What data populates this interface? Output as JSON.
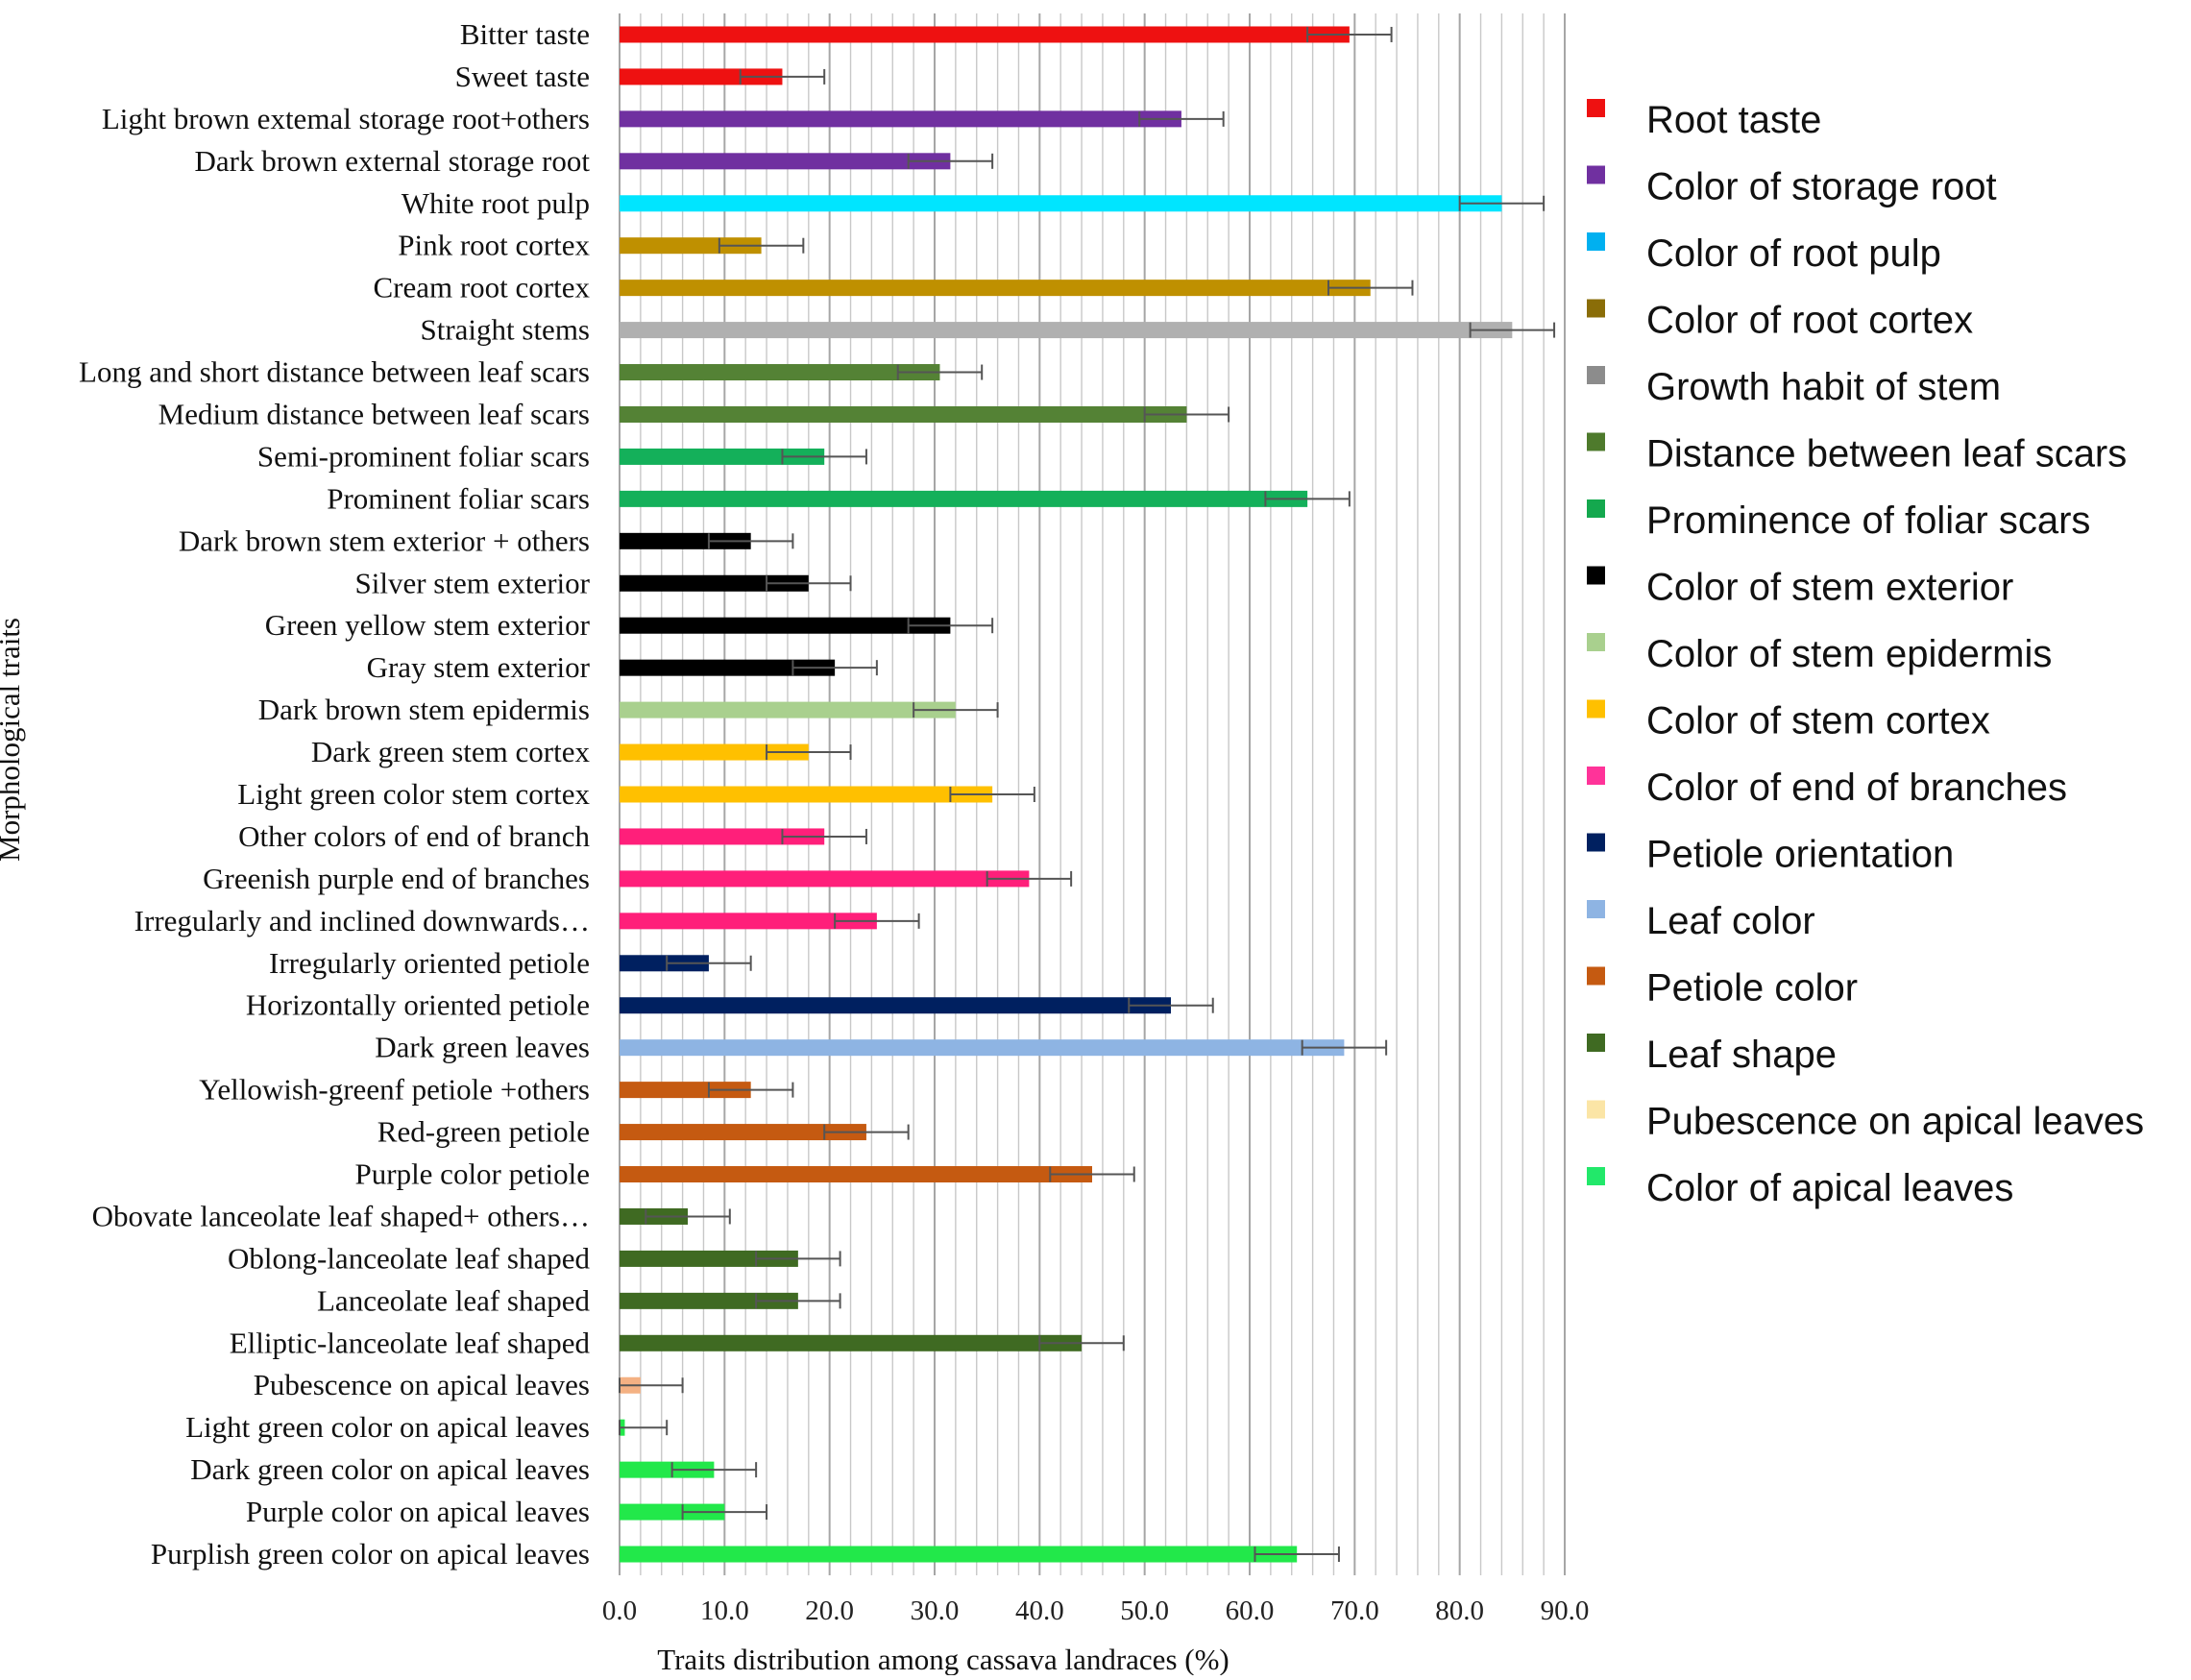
{
  "chart_data": {
    "type": "bar",
    "orientation": "horizontal",
    "xlabel": "Traits  distribution among cassava landraces (%)",
    "ylabel": "Morphological traits",
    "xlim": [
      0,
      90
    ],
    "x_ticks": [
      "0.0",
      "10.0",
      "20.0",
      "30.0",
      "40.0",
      "50.0",
      "60.0",
      "70.0",
      "80.0",
      "90.0"
    ],
    "grid": "vertical",
    "legend_position": "right",
    "legend": [
      {
        "name": "Root taste",
        "color": "#ee1111"
      },
      {
        "name": "Color of storage root",
        "color": "#7030a0"
      },
      {
        "name": "Color of root pulp",
        "color": "#00b0f0"
      },
      {
        "name": "Color of root cortex",
        "color": "#8a6d08"
      },
      {
        "name": "Growth habit of stem",
        "color": "#8c8c8c"
      },
      {
        "name": "Distance between leaf scars",
        "color": "#4e7a2c"
      },
      {
        "name": "Prominence of foliar scars",
        "color": "#14a84e"
      },
      {
        "name": "Color of stem exterior",
        "color": "#000000"
      },
      {
        "name": "Color of stem epidermis",
        "color": "#a9d08e"
      },
      {
        "name": "Color of stem cortex",
        "color": "#ffc000"
      },
      {
        "name": "Color of end of branches",
        "color": "#ff3399"
      },
      {
        "name": "Petiole orientation",
        "color": "#002060"
      },
      {
        "name": "Leaf color",
        "color": "#8eb4e3"
      },
      {
        "name": "Petiole color",
        "color": "#c55a11"
      },
      {
        "name": "Leaf shape",
        "color": "#3f6a22"
      },
      {
        "name": "Pubescence on apical leaves",
        "color": "#fbe5a6"
      },
      {
        "name": "Color of apical leaves",
        "color": "#22e86a"
      }
    ],
    "bars": [
      {
        "label": "Bitter taste",
        "value": 69.5,
        "error": 4.0,
        "color": "#ee1111"
      },
      {
        "label": "Sweet taste",
        "value": 15.5,
        "error": 4.0,
        "color": "#ee1111"
      },
      {
        "label": "Light brown extemal storage root+others",
        "value": 53.5,
        "error": 4.0,
        "color": "#7030a0"
      },
      {
        "label": "Dark brown external storage root",
        "value": 31.5,
        "error": 4.0,
        "color": "#7030a0"
      },
      {
        "label": "White  root pulp",
        "value": 84.0,
        "error": 4.0,
        "color": "#00e5ff"
      },
      {
        "label": "Pink root cortex",
        "value": 13.5,
        "error": 4.0,
        "color": "#bf9000"
      },
      {
        "label": "Cream  root cortex",
        "value": 71.5,
        "error": 4.0,
        "color": "#bf9000"
      },
      {
        "label": "Straight stems",
        "value": 85.0,
        "error": 4.0,
        "color": "#b0b0b0"
      },
      {
        "label": "Long and short distance between leaf scars",
        "value": 30.5,
        "error": 4.0,
        "color": "#548235"
      },
      {
        "label": "Medium distance between leaf scars",
        "value": 54.0,
        "error": 4.0,
        "color": "#548235"
      },
      {
        "label": "Semi-prominent foliar scars",
        "value": 19.5,
        "error": 4.0,
        "color": "#14b05a"
      },
      {
        "label": "Prominent foliar scars",
        "value": 65.5,
        "error": 4.0,
        "color": "#14b05a"
      },
      {
        "label": "Dark brown stem exterior + others",
        "value": 12.5,
        "error": 4.0,
        "color": "#000000"
      },
      {
        "label": "Silver stem exterior",
        "value": 18.0,
        "error": 4.0,
        "color": "#000000"
      },
      {
        "label": "Green yellow stem exterior",
        "value": 31.5,
        "error": 4.0,
        "color": "#000000"
      },
      {
        "label": "Gray stem exterior",
        "value": 20.5,
        "error": 4.0,
        "color": "#000000"
      },
      {
        "label": "Dark brown stem epidermis",
        "value": 32.0,
        "error": 4.0,
        "color": "#a9d08e"
      },
      {
        "label": "Dark green stem cortex",
        "value": 18.0,
        "error": 4.0,
        "color": "#ffc000"
      },
      {
        "label": "Light green color stem cortex",
        "value": 35.5,
        "error": 4.0,
        "color": "#ffc000"
      },
      {
        "label": "Other colors of end of branch",
        "value": 19.5,
        "error": 4.0,
        "color": "#ff1f7a"
      },
      {
        "label": "Greenish purple end of branches",
        "value": 39.0,
        "error": 4.0,
        "color": "#ff1f7a"
      },
      {
        "label": "Irregularly and  inclined downwards…",
        "value": 24.5,
        "error": 4.0,
        "color": "#ff1f7a"
      },
      {
        "label": "Irregularly  oriented petiole",
        "value": 8.5,
        "error": 4.0,
        "color": "#002060"
      },
      {
        "label": "Horizontally oriented petiole",
        "value": 52.5,
        "error": 4.0,
        "color": "#002060"
      },
      {
        "label": "Dark green leaves",
        "value": 69.0,
        "error": 4.0,
        "color": "#8eb4e3"
      },
      {
        "label": "Yellowish-greenf petiole +others",
        "value": 12.5,
        "error": 4.0,
        "color": "#c55a11"
      },
      {
        "label": "Red-green  petiole",
        "value": 23.5,
        "error": 4.0,
        "color": "#c55a11"
      },
      {
        "label": "Purple color petiole",
        "value": 45.0,
        "error": 4.0,
        "color": "#c55a11"
      },
      {
        "label": "Obovate lanceolate leaf shaped+ others…",
        "value": 6.5,
        "error": 4.0,
        "color": "#3f6a22"
      },
      {
        "label": "Oblong-lanceolate leaf shaped",
        "value": 17.0,
        "error": 4.0,
        "color": "#3f6a22"
      },
      {
        "label": "Lanceolate leaf shaped",
        "value": 17.0,
        "error": 4.0,
        "color": "#3f6a22"
      },
      {
        "label": "Elliptic-lanceolate leaf shaped",
        "value": 44.0,
        "error": 4.0,
        "color": "#3f6a22"
      },
      {
        "label": "Pubescence on apical leaves",
        "value": 2.0,
        "error": 4.0,
        "color": "#f4b183"
      },
      {
        "label": "Light green color on apical leaves",
        "value": 0.5,
        "error": 4.0,
        "color": "#22e84a"
      },
      {
        "label": "Dark green color on apical leaves",
        "value": 9.0,
        "error": 4.0,
        "color": "#22e84a"
      },
      {
        "label": "Purple color on apical leaves",
        "value": 10.0,
        "error": 4.0,
        "color": "#22e84a"
      },
      {
        "label": "Purplish green color on apical leaves",
        "value": 64.5,
        "error": 4.0,
        "color": "#22e84a"
      }
    ]
  }
}
